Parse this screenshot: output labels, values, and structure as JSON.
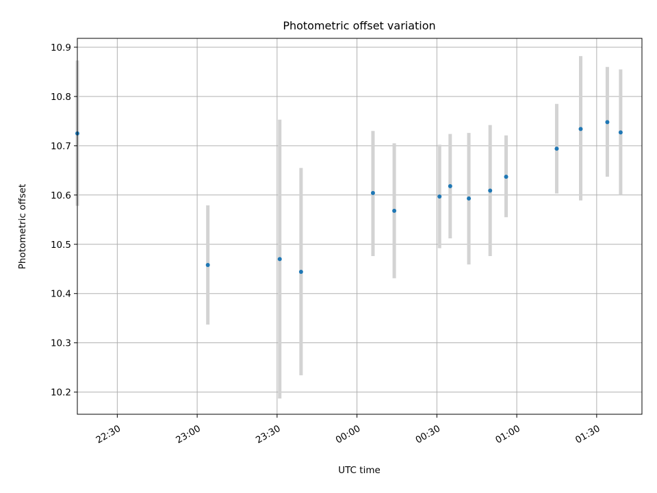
{
  "chart_data": {
    "type": "scatter",
    "title": "Photometric offset variation",
    "xlabel": "UTC time",
    "ylabel": "Photometric offset",
    "grid": true,
    "x_tick_labels": [
      "22:30",
      "23:00",
      "23:30",
      "00:00",
      "00:30",
      "01:00",
      "01:30"
    ],
    "y_tick_labels": [
      "10.2",
      "10.3",
      "10.4",
      "10.5",
      "10.6",
      "10.7",
      "10.8",
      "10.9"
    ],
    "xlim": [
      "22:15",
      "01:47"
    ],
    "ylim": [
      10.155,
      10.918
    ],
    "marker_color": "#1f77b4",
    "errorbar_color": "#d3d3d3",
    "points": [
      {
        "x": "22:15",
        "y": 10.725,
        "ylow": 10.578,
        "yhigh": 10.873
      },
      {
        "x": "23:04",
        "y": 10.458,
        "ylow": 10.337,
        "yhigh": 10.579
      },
      {
        "x": "23:31",
        "y": 10.47,
        "ylow": 10.187,
        "yhigh": 10.753
      },
      {
        "x": "23:39",
        "y": 10.444,
        "ylow": 10.234,
        "yhigh": 10.655
      },
      {
        "x": "00:06",
        "y": 10.604,
        "ylow": 10.476,
        "yhigh": 10.73
      },
      {
        "x": "00:14",
        "y": 10.568,
        "ylow": 10.431,
        "yhigh": 10.705
      },
      {
        "x": "00:31",
        "y": 10.597,
        "ylow": 10.492,
        "yhigh": 10.702
      },
      {
        "x": "00:35",
        "y": 10.618,
        "ylow": 10.512,
        "yhigh": 10.724
      },
      {
        "x": "00:42",
        "y": 10.593,
        "ylow": 10.459,
        "yhigh": 10.726
      },
      {
        "x": "00:50",
        "y": 10.609,
        "ylow": 10.476,
        "yhigh": 10.742
      },
      {
        "x": "00:56",
        "y": 10.637,
        "ylow": 10.555,
        "yhigh": 10.721
      },
      {
        "x": "01:15",
        "y": 10.694,
        "ylow": 10.603,
        "yhigh": 10.785
      },
      {
        "x": "01:24",
        "y": 10.734,
        "ylow": 10.589,
        "yhigh": 10.882
      },
      {
        "x": "01:34",
        "y": 10.748,
        "ylow": 10.637,
        "yhigh": 10.86
      },
      {
        "x": "01:39",
        "y": 10.727,
        "ylow": 10.6,
        "yhigh": 10.855
      }
    ]
  }
}
